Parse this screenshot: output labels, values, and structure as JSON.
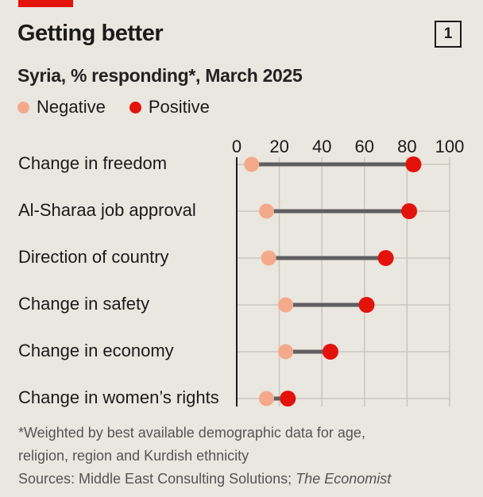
{
  "header": {
    "title": "Getting better",
    "badge": "1",
    "subtitle": "Syria, % responding*, March 2025"
  },
  "legend": [
    {
      "label": "Negative",
      "color": "#f4a98b"
    },
    {
      "label": "Positive",
      "color": "#e3120b"
    }
  ],
  "footnote": {
    "line1": "*Weighted by best available demographic data for age,",
    "line2": "religion, region and Kurdish ethnicity",
    "sources_prefix": "Sources: Middle East Consulting Solutions; ",
    "sources_italic": "The Economist"
  },
  "chart_data": {
    "type": "dumbbell",
    "title": "Getting better",
    "subtitle": "Syria, % responding*, March 2025",
    "xlabel": "",
    "ylabel": "",
    "xlim": [
      0,
      100
    ],
    "xticks": [
      0,
      20,
      40,
      60,
      80,
      100
    ],
    "grid": true,
    "legend_position": "top-left",
    "categories": [
      "Change in freedom",
      "Al-Sharaa job approval",
      "Direction of country",
      "Change in safety",
      "Change in economy",
      "Change in women’s rights"
    ],
    "series": [
      {
        "name": "Negative",
        "color": "#f4a98b",
        "values": [
          7,
          14,
          15,
          23,
          23,
          14
        ]
      },
      {
        "name": "Positive",
        "color": "#e3120b",
        "values": [
          83,
          81,
          70,
          61,
          44,
          24
        ]
      }
    ],
    "connector_color": "#5f5f62"
  }
}
